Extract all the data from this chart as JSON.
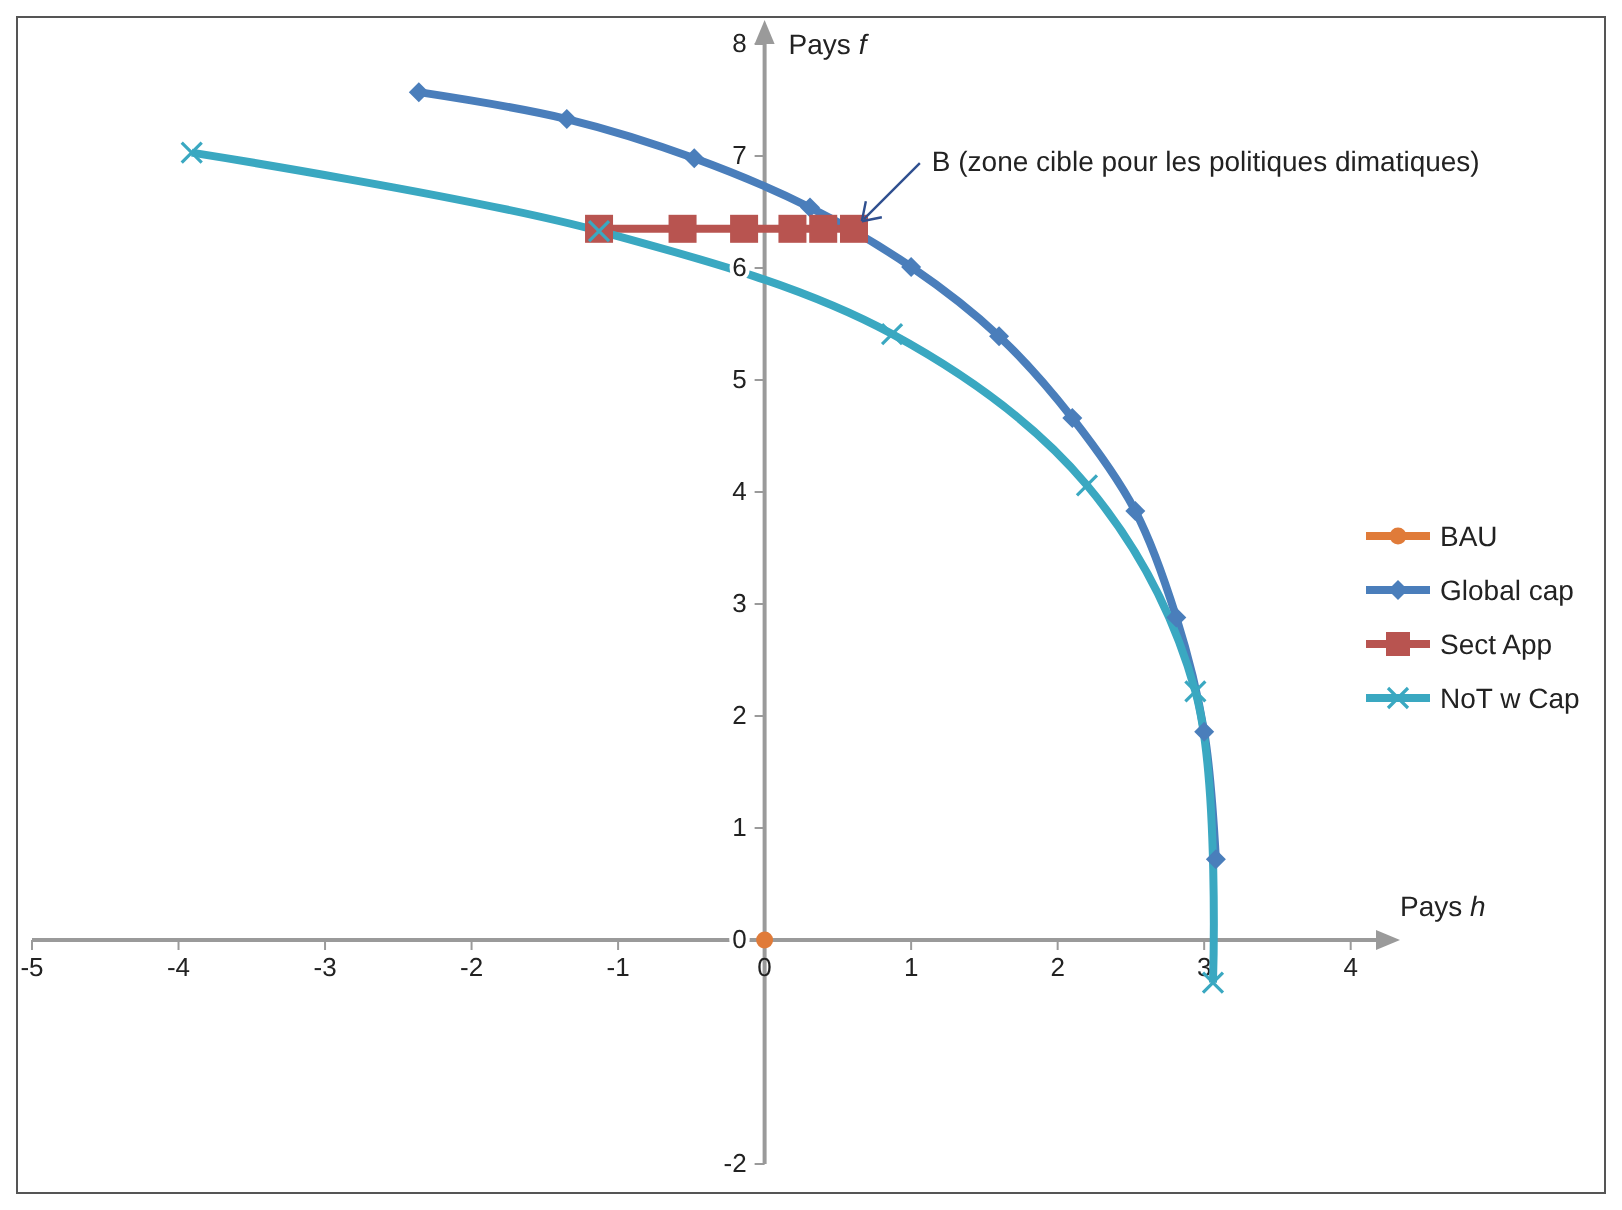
{
  "chart_data": {
    "type": "line",
    "xlabel": "Pays h",
    "ylabel": "Pays f",
    "xlim": [
      -5,
      4.2
    ],
    "xticks": [
      -5,
      -4,
      -3,
      -2,
      -1,
      0,
      1,
      2,
      3,
      4
    ],
    "ylim": [
      -2,
      8
    ],
    "yticks": [
      -2,
      0,
      1,
      2,
      3,
      4,
      5,
      6,
      7,
      8
    ],
    "grid": false,
    "legend": "right",
    "line_style": "solid",
    "annotations": [
      {
        "text": "B (zone cible pour les politiques dimatiques)",
        "x": 0.65,
        "y": 6.4
      }
    ],
    "series": [
      {
        "name": "BAU",
        "color": "#e07b39",
        "marker": "circle",
        "x": [
          0
        ],
        "values": [
          0
        ]
      },
      {
        "name": "Global cap",
        "color": "#4a7ebb",
        "marker": "diamond",
        "x": [
          -2.36,
          -1.35,
          -0.48,
          0.31,
          1.0,
          1.6,
          2.1,
          2.53,
          2.81,
          3.0,
          3.08
        ],
        "values": [
          7.57,
          7.33,
          6.98,
          6.54,
          6.01,
          5.39,
          4.66,
          3.83,
          2.88,
          1.86,
          0.72
        ]
      },
      {
        "name": "Sect App",
        "color": "#b85450",
        "marker": "square",
        "x": [
          -1.13,
          -0.56,
          -0.14,
          0.19,
          0.4,
          0.61
        ],
        "values": [
          6.35,
          6.35,
          6.35,
          6.35,
          6.35,
          6.35
        ]
      },
      {
        "name": "NoT w Cap",
        "color": "#3aa8c1",
        "marker": "cross",
        "x": [
          -3.91,
          -1.13,
          0.87,
          2.2,
          2.94,
          3.06
        ],
        "values": [
          7.03,
          6.33,
          5.41,
          4.06,
          2.22,
          -0.38
        ]
      }
    ]
  }
}
